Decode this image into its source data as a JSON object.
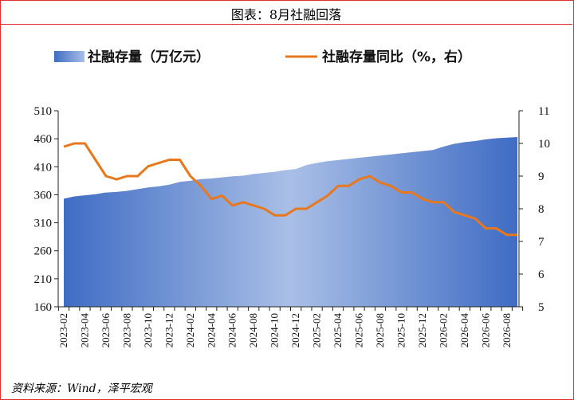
{
  "header": {
    "title": "图表：8月社融回落"
  },
  "footer": {
    "source": "资料来源：Wind，泽平宏观"
  },
  "colors": {
    "frame": "#e03030",
    "area_light": "#a9bfe6",
    "area_dark": "#3f6cc4",
    "line": "#e8781e"
  },
  "chart_data": {
    "type": "area+line",
    "legend_placement": "top",
    "grid": false,
    "series": [
      {
        "name": "社融存量（万亿元）",
        "type": "area",
        "axis": "left",
        "values": [
          353,
          357,
          359,
          361,
          364,
          365,
          367,
          370,
          373,
          375,
          378,
          383,
          385,
          388,
          389,
          391,
          393,
          394,
          397,
          399,
          401,
          404,
          406,
          413,
          417,
          420,
          422,
          424,
          426,
          428,
          430,
          432,
          434,
          436,
          438,
          440,
          446,
          451,
          454,
          456,
          459,
          461,
          462,
          463
        ]
      },
      {
        "name": "社融存量同比（%，右）",
        "type": "line",
        "axis": "right",
        "values": [
          9.9,
          10.0,
          10.0,
          9.5,
          9.0,
          8.9,
          9.0,
          9.0,
          9.3,
          9.4,
          9.5,
          9.5,
          9.0,
          8.7,
          8.3,
          8.4,
          8.1,
          8.2,
          8.1,
          8.0,
          7.8,
          7.8,
          8.0,
          8.0,
          8.2,
          8.4,
          8.7,
          8.7,
          8.9,
          9.0,
          8.8,
          8.7,
          8.5,
          8.5,
          8.3,
          8.2,
          8.2,
          7.9,
          7.8,
          7.7,
          7.4,
          7.4,
          7.2,
          7.2
        ]
      }
    ],
    "x_tick_labels": [
      "2023-02",
      "2023-04",
      "2023-06",
      "2023-08",
      "2023-10",
      "2023-12",
      "2024-02",
      "2024-04",
      "2024-06",
      "2024-08",
      "2024-10",
      "2024-12",
      "2025-02",
      "2025-04",
      "2025-06",
      "2025-08",
      "2025-10",
      "2025-12",
      "2026-02",
      "2026-04",
      "2026-06",
      "2026-08"
    ],
    "y_left": {
      "ticks": [
        "510",
        "460",
        "410",
        "360",
        "310",
        "260",
        "210",
        "160"
      ],
      "range": [
        160,
        510
      ]
    },
    "y_right": {
      "ticks": [
        "11",
        "10",
        "9",
        "8",
        "7",
        "6",
        "5"
      ],
      "range": [
        5,
        11
      ]
    }
  }
}
